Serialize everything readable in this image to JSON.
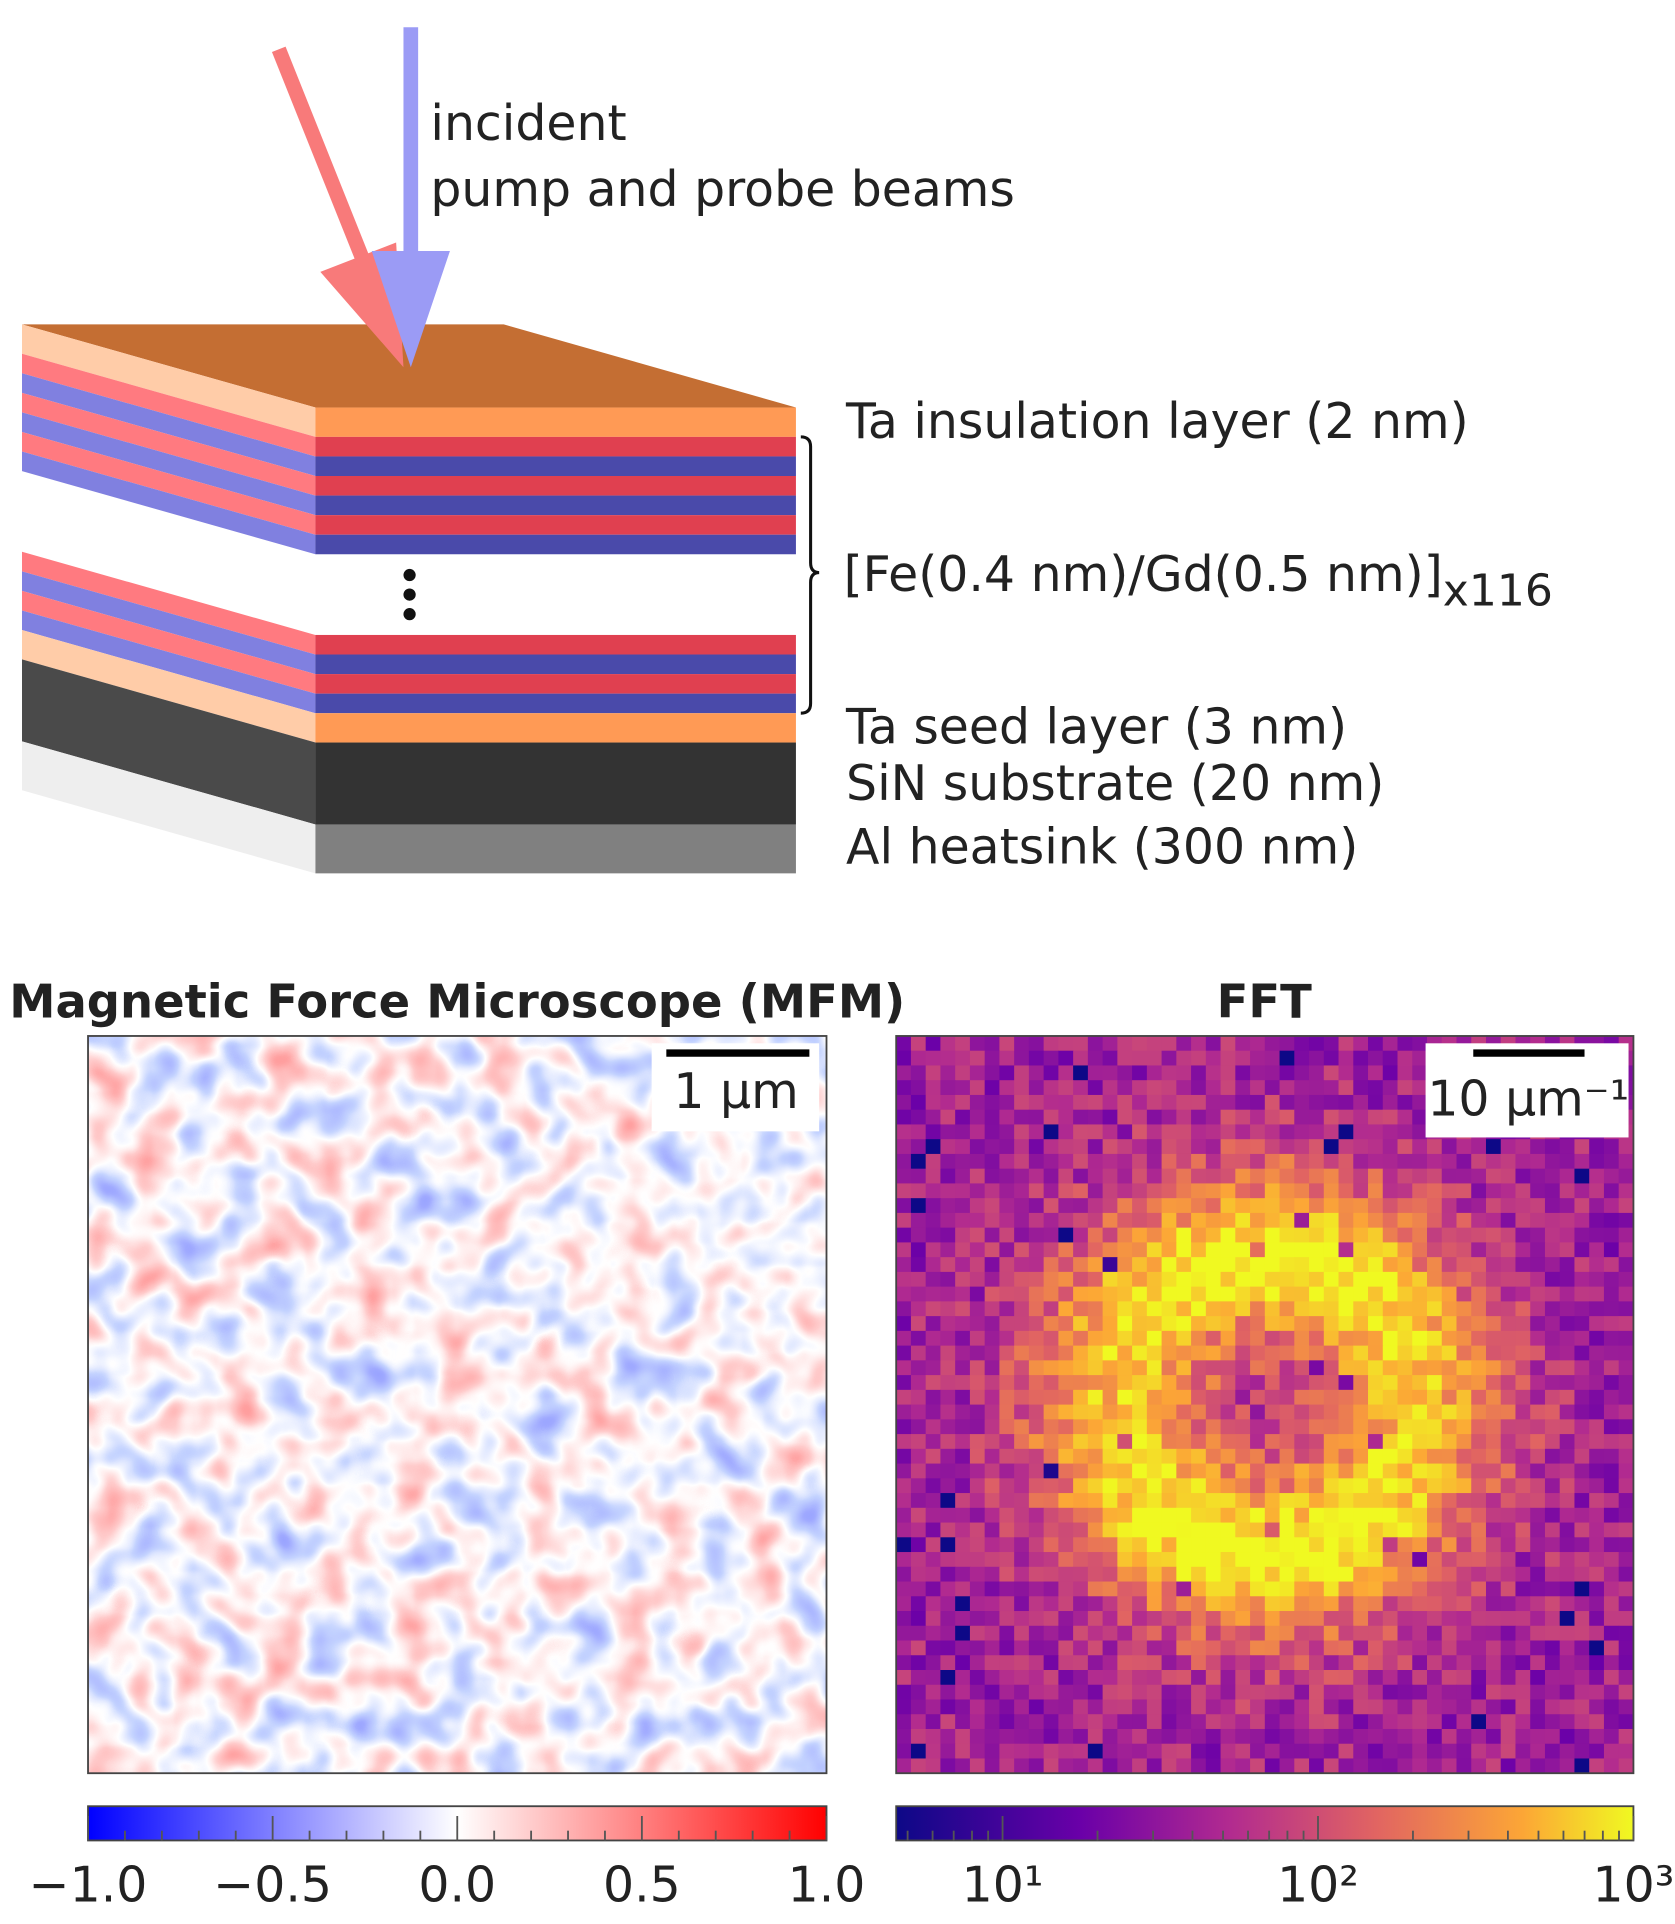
{
  "diagram": {
    "beam_label": [
      "incident",
      "pump and probe beams"
    ],
    "layers": {
      "top": "Ta insulation layer (2 nm)",
      "multilayer": "[Fe(0.4 nm)/Gd(0.5 nm)]",
      "repeat": "x116",
      "seed": "Ta seed layer (3 nm)",
      "substrate": "SiN substrate (20 nm)",
      "heatsink": "Al heatsink (300 nm)"
    }
  },
  "mfm": {
    "title": "Magnetic Force Microscope (MFM)",
    "scale_bar": "1 µm",
    "colorbar": {
      "lim": [
        -1,
        1
      ],
      "ticks": [
        {
          "value": -1,
          "label": "−1.0"
        },
        {
          "value": -0.5,
          "label": "−0.5"
        },
        {
          "value": 0,
          "label": "0.0"
        },
        {
          "value": 0.5,
          "label": "0.5"
        },
        {
          "value": 1,
          "label": "1.0"
        }
      ],
      "minor_ticks": [
        -0.9,
        -0.8,
        -0.7,
        -0.6,
        -0.4,
        -0.3,
        -0.2,
        -0.1,
        0.1,
        0.2,
        0.3,
        0.4,
        0.6,
        0.7,
        0.8,
        0.9
      ]
    }
  },
  "fft": {
    "title": "FFT",
    "scale_bar": "10 µm⁻¹",
    "colorbar": {
      "log": true,
      "lim": [
        4.6,
        1000
      ],
      "ticks": [
        {
          "value": 10,
          "label": "10¹"
        },
        {
          "value": 100,
          "label": "10²"
        },
        {
          "value": 1000,
          "label": "10³"
        }
      ],
      "minor_ticks": [
        5,
        6,
        7,
        8,
        9,
        20,
        30,
        40,
        50,
        60,
        70,
        80,
        90,
        200,
        300,
        400,
        500,
        600,
        700,
        800,
        900
      ]
    }
  }
}
